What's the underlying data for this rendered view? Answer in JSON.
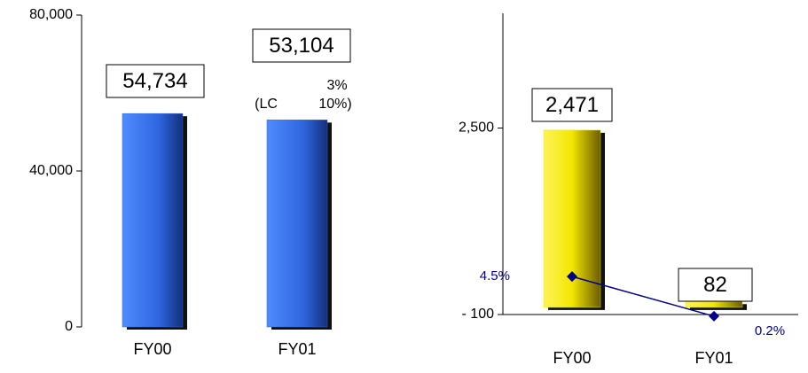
{
  "chart_data": [
    {
      "type": "bar",
      "categories": [
        "FY00",
        "FY01"
      ],
      "values": [
        54734,
        53104
      ],
      "value_labels": [
        "54,734",
        "53,104"
      ],
      "color": "#2f66e0",
      "ylim": [
        0,
        80000
      ],
      "yticks": [
        {
          "value": 0,
          "label": "0"
        },
        {
          "value": 40000,
          "label": "40,000"
        },
        {
          "value": 80000,
          "label": "80,000"
        }
      ],
      "annotations": [
        "(LC",
        "3%",
        "10%)"
      ]
    },
    {
      "type": "bar",
      "categories": [
        "FY00",
        "FY01"
      ],
      "values": [
        2471,
        82
      ],
      "value_labels": [
        "2,471",
        "82"
      ],
      "color": "#f2e600",
      "ylim": [
        -100,
        4100
      ],
      "yticks": [
        {
          "value": -100,
          "label": "- 100"
        },
        {
          "value": 2500,
          "label": "2,500"
        }
      ],
      "y2lim": [
        0,
        33
      ],
      "series": [
        {
          "values": [
            4.5,
            0.2
          ],
          "value_labels": [
            "4.5%",
            "0.2%"
          ],
          "color": "#00008b",
          "axis": "y2"
        }
      ]
    }
  ]
}
